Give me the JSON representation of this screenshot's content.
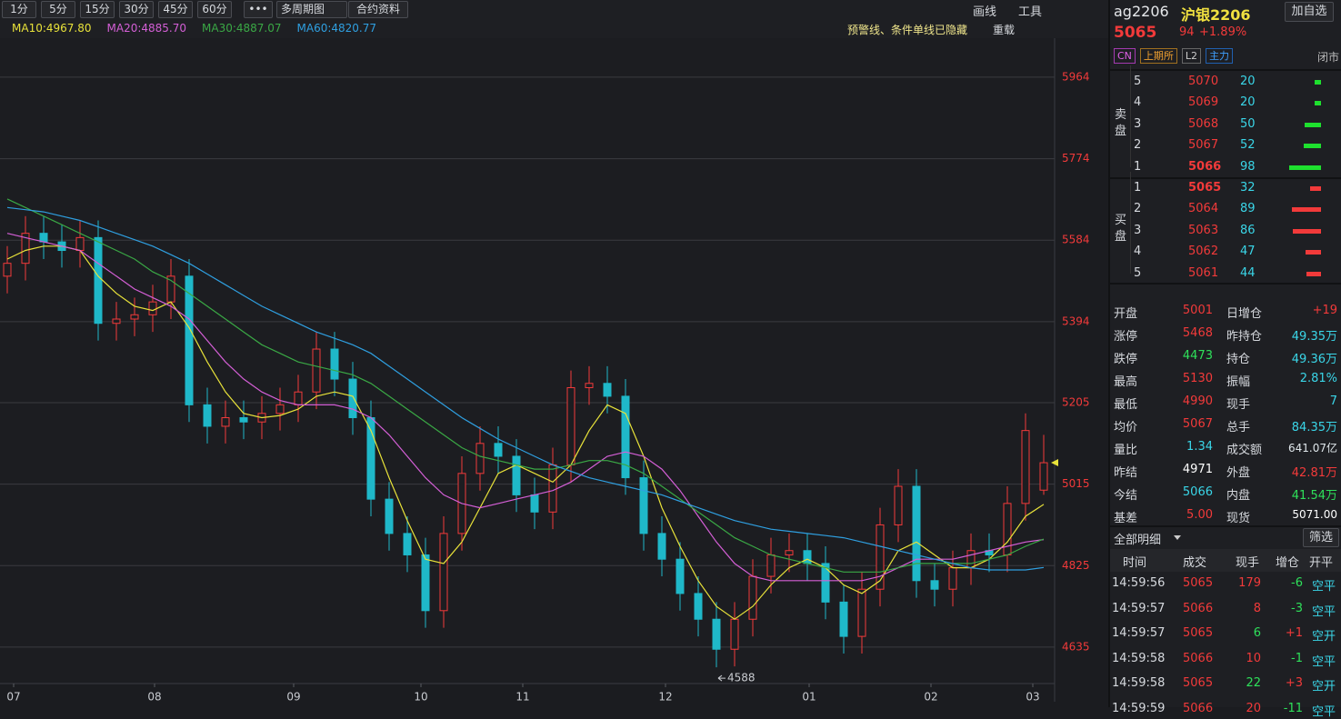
{
  "toolbar": {
    "periods": [
      "1分",
      "5分",
      "15分",
      "30分",
      "45分",
      "60分"
    ],
    "more": "•••",
    "multi": "多周期图",
    "contract": "合约资料",
    "draw": "画线",
    "tools": "工具",
    "notice": "预警线、条件单线已隐藏",
    "reload": "重载"
  },
  "chart_data": {
    "type": "candlestick",
    "x": [
      0,
      1,
      2,
      3,
      4,
      5,
      6,
      7,
      8,
      9,
      10,
      11,
      12,
      13,
      14,
      15,
      16,
      17,
      18,
      19,
      20,
      21,
      22,
      23,
      24,
      25,
      26,
      27,
      28,
      29,
      30,
      31,
      32,
      33,
      34,
      35,
      36,
      37,
      38,
      39,
      40,
      41,
      42,
      43,
      44,
      45,
      46,
      47,
      48,
      49,
      50,
      51,
      52,
      53,
      54,
      55,
      56,
      57
    ],
    "open": [
      5500,
      5530,
      5600,
      5580,
      5560,
      5590,
      5390,
      5400,
      5410,
      5440,
      5500,
      5200,
      5150,
      5170,
      5160,
      5180,
      5200,
      5230,
      5330,
      5260,
      5170,
      4980,
      4900,
      4850,
      4720,
      4900,
      5040,
      5110,
      5080,
      4990,
      4950,
      5060,
      5240,
      5250,
      5220,
      5030,
      4900,
      4840,
      4760,
      4700,
      4630,
      4700,
      4800,
      4850,
      4860,
      4830,
      4740,
      4660,
      4770,
      4920,
      5010,
      4790,
      4770,
      4820,
      4860,
      4850,
      4970,
      5001
    ],
    "close": [
      5530,
      5600,
      5580,
      5560,
      5590,
      5390,
      5400,
      5410,
      5440,
      5500,
      5200,
      5150,
      5170,
      5160,
      5180,
      5200,
      5230,
      5330,
      5260,
      5170,
      4980,
      4900,
      4850,
      4720,
      4900,
      5040,
      5110,
      5080,
      4990,
      4950,
      5060,
      5240,
      5250,
      5220,
      5030,
      4900,
      4840,
      4760,
      4700,
      4630,
      4700,
      4800,
      4850,
      4860,
      4830,
      4740,
      4660,
      4770,
      4920,
      5010,
      4790,
      4770,
      4820,
      4860,
      4850,
      4970,
      5140,
      5065
    ],
    "high": [
      5570,
      5640,
      5640,
      5620,
      5630,
      5630,
      5440,
      5450,
      5480,
      5540,
      5540,
      5240,
      5210,
      5210,
      5220,
      5240,
      5270,
      5370,
      5370,
      5300,
      5210,
      5020,
      4940,
      4890,
      4940,
      5080,
      5150,
      5150,
      5120,
      5030,
      5100,
      5280,
      5290,
      5290,
      5260,
      5070,
      4940,
      4880,
      4800,
      4740,
      4740,
      4840,
      4890,
      4900,
      4900,
      4870,
      4780,
      4810,
      4960,
      5050,
      5050,
      4830,
      4860,
      4900,
      4900,
      5010,
      5180,
      5130
    ],
    "low": [
      5460,
      5490,
      5540,
      5520,
      5520,
      5350,
      5350,
      5360,
      5370,
      5400,
      5160,
      5110,
      5110,
      5120,
      5120,
      5140,
      5160,
      5190,
      5220,
      5130,
      4940,
      4860,
      4810,
      4680,
      4680,
      4860,
      5000,
      5040,
      4950,
      4910,
      4910,
      5020,
      5200,
      5180,
      4990,
      4860,
      4800,
      4720,
      4660,
      4588,
      4590,
      4660,
      4760,
      4810,
      4790,
      4700,
      4620,
      4620,
      4730,
      4880,
      4750,
      4730,
      4730,
      4780,
      4810,
      4810,
      4930,
      4990
    ],
    "up_color": "#f23a3a",
    "down_color": "#1fb8c9",
    "series": [
      {
        "name": "MA10:4967.80",
        "color": "#e8e23a",
        "values": [
          5540,
          5560,
          5570,
          5570,
          5560,
          5500,
          5460,
          5430,
          5420,
          5440,
          5380,
          5300,
          5230,
          5180,
          5170,
          5175,
          5190,
          5220,
          5230,
          5220,
          5140,
          5030,
          4930,
          4840,
          4830,
          4880,
          4960,
          5040,
          5060,
          5040,
          5020,
          5060,
          5140,
          5200,
          5180,
          5080,
          4960,
          4870,
          4790,
          4730,
          4700,
          4730,
          4780,
          4820,
          4840,
          4820,
          4780,
          4760,
          4790,
          4860,
          4880,
          4850,
          4820,
          4820,
          4840,
          4880,
          4940,
          4967.8
        ]
      },
      {
        "name": "MA20:4885.70",
        "color": "#d45fd6",
        "values": [
          5600,
          5590,
          5580,
          5570,
          5560,
          5530,
          5500,
          5470,
          5450,
          5430,
          5400,
          5350,
          5300,
          5260,
          5230,
          5210,
          5200,
          5200,
          5200,
          5190,
          5170,
          5130,
          5080,
          5030,
          4990,
          4970,
          4960,
          4970,
          4980,
          4990,
          5000,
          5020,
          5050,
          5080,
          5090,
          5080,
          5050,
          5000,
          4940,
          4880,
          4830,
          4800,
          4790,
          4790,
          4790,
          4790,
          4790,
          4790,
          4800,
          4820,
          4840,
          4840,
          4840,
          4850,
          4860,
          4870,
          4880,
          4885.7
        ]
      },
      {
        "name": "MA30:4887.07",
        "color": "#3aa845",
        "values": [
          5680,
          5660,
          5640,
          5620,
          5600,
          5580,
          5560,
          5540,
          5510,
          5490,
          5460,
          5430,
          5400,
          5370,
          5340,
          5320,
          5300,
          5290,
          5280,
          5270,
          5250,
          5220,
          5190,
          5160,
          5130,
          5100,
          5080,
          5070,
          5060,
          5050,
          5050,
          5060,
          5070,
          5070,
          5060,
          5040,
          5010,
          4980,
          4950,
          4920,
          4890,
          4870,
          4850,
          4840,
          4830,
          4820,
          4810,
          4810,
          4810,
          4820,
          4830,
          4830,
          4830,
          4830,
          4840,
          4850,
          4870,
          4887.07
        ]
      },
      {
        "name": "MA60:4820.77",
        "color": "#2f9fe0",
        "values": [
          5660,
          5655,
          5650,
          5640,
          5630,
          5615,
          5600,
          5585,
          5570,
          5550,
          5530,
          5505,
          5480,
          5455,
          5430,
          5410,
          5390,
          5370,
          5355,
          5340,
          5320,
          5290,
          5260,
          5230,
          5200,
          5170,
          5145,
          5120,
          5100,
          5080,
          5060,
          5045,
          5030,
          5020,
          5010,
          5000,
          4990,
          4975,
          4960,
          4945,
          4930,
          4920,
          4910,
          4905,
          4900,
          4895,
          4890,
          4880,
          4870,
          4860,
          4850,
          4840,
          4830,
          4820,
          4815,
          4815,
          4815,
          4820.77
        ]
      }
    ],
    "xlim": [
      -0.4,
      57.6
    ],
    "xticks": [
      {
        "value": 0.35,
        "label": "07"
      },
      {
        "value": 8.1,
        "label": "08"
      },
      {
        "value": 15.75,
        "label": "09"
      },
      {
        "value": 22.75,
        "label": "10"
      },
      {
        "value": 28.35,
        "label": "11"
      },
      {
        "value": 36.2,
        "label": "12"
      },
      {
        "value": 44.1,
        "label": "01"
      },
      {
        "value": 50.8,
        "label": "02"
      },
      {
        "value": 56.4,
        "label": "03"
      }
    ],
    "ylim": [
      4550,
      6055
    ],
    "yticks": [
      4635,
      4825,
      5015,
      5205,
      5394,
      5584,
      5774,
      5964
    ],
    "grid": true,
    "min_marker_index": 39
  },
  "quote": {
    "code": "ag2206",
    "name": "沪银2206",
    "add_button": "加自选",
    "price": 5065,
    "change": 94,
    "change_pct": "+1.89%",
    "tags": [
      "CN",
      "上期所",
      "L2",
      "主力"
    ],
    "status": "闭市"
  },
  "order_book": {
    "sell_label": "卖盘",
    "buy_label": "买盘",
    "sell": [
      {
        "level": 5,
        "price": 5070,
        "volume": 20
      },
      {
        "level": 4,
        "price": 5069,
        "volume": 20
      },
      {
        "level": 3,
        "price": 5068,
        "volume": 50
      },
      {
        "level": 2,
        "price": 5067,
        "volume": 52
      },
      {
        "level": 1,
        "price": 5066,
        "volume": 98
      }
    ],
    "buy": [
      {
        "level": 1,
        "price": 5065,
        "volume": 32
      },
      {
        "level": 2,
        "price": 5064,
        "volume": 89
      },
      {
        "level": 3,
        "price": 5063,
        "volume": 86
      },
      {
        "level": 4,
        "price": 5062,
        "volume": 47
      },
      {
        "level": 5,
        "price": 5061,
        "volume": 44
      }
    ]
  },
  "stats": [
    [
      {
        "label": "开盘",
        "value": "5001",
        "color": "#f23a3a"
      },
      {
        "label": "日增仓",
        "value": "+19",
        "color": "#f23a3a"
      }
    ],
    [
      {
        "label": "涨停",
        "value": "5468",
        "color": "#f23a3a"
      },
      {
        "label": "昨持仓",
        "value": "49.35万",
        "color": "#3ad6e8"
      }
    ],
    [
      {
        "label": "跌停",
        "value": "4473",
        "color": "#2ee05a"
      },
      {
        "label": "持仓",
        "value": "49.36万",
        "color": "#3ad6e8"
      }
    ],
    [
      {
        "label": "最高",
        "value": "5130",
        "color": "#f23a3a"
      },
      {
        "label": "振幅",
        "value": "2.81%",
        "color": "#3ad6e8"
      }
    ],
    [
      {
        "label": "最低",
        "value": "4990",
        "color": "#f23a3a"
      },
      {
        "label": "现手",
        "value": "7",
        "color": "#3ad6e8"
      }
    ],
    [
      {
        "label": "均价",
        "value": "5067",
        "color": "#f23a3a"
      },
      {
        "label": "总手",
        "value": "84.35万",
        "color": "#3ad6e8"
      }
    ],
    [
      {
        "label": "量比",
        "value": "1.34",
        "color": "#3ad6e8"
      },
      {
        "label": "成交额",
        "value": "641.07亿",
        "color": "#dfe6ea"
      }
    ],
    [
      {
        "label": "昨结",
        "value": "4971",
        "color": "#ffffff"
      },
      {
        "label": "外盘",
        "value": "42.81万",
        "color": "#f23a3a"
      }
    ],
    [
      {
        "label": "今结",
        "value": "5066",
        "color": "#3ad6e8"
      },
      {
        "label": "内盘",
        "value": "41.54万",
        "color": "#2ee05a"
      }
    ],
    [
      {
        "label": "基差",
        "value": "5.00",
        "color": "#f23a3a"
      },
      {
        "label": "现货",
        "value": "5071.00",
        "color": "#ffffff"
      }
    ]
  ],
  "trades": {
    "filter": "全部明细",
    "screen": "筛选",
    "columns": [
      "时间",
      "成交",
      "现手",
      "增仓",
      "开平"
    ],
    "rows": [
      [
        "14:59:56",
        "5065",
        "179",
        "-6",
        "空平"
      ],
      [
        "14:59:57",
        "5066",
        "8",
        "-3",
        "空平"
      ],
      [
        "14:59:57",
        "5065",
        "6",
        "+1",
        "空开"
      ],
      [
        "14:59:58",
        "5066",
        "10",
        "-1",
        "空平"
      ],
      [
        "14:59:58",
        "5065",
        "22",
        "+3",
        "空开"
      ],
      [
        "14:59:59",
        "5066",
        "20",
        "-11",
        "空平"
      ]
    ],
    "volume_colors": [
      "#f23a3a",
      "#f23a3a",
      "#2ee05a",
      "#f23a3a",
      "#2ee05a",
      "#f23a3a"
    ]
  }
}
